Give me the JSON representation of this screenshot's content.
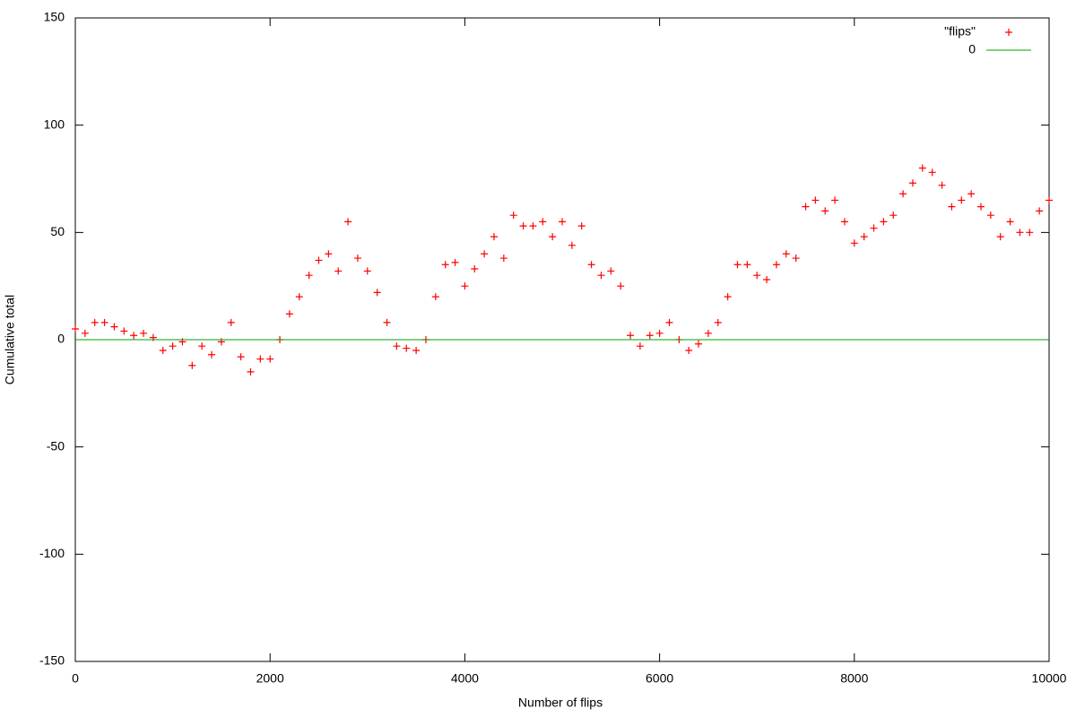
{
  "chart_data": {
    "type": "scatter",
    "xlabel": "Number of flips",
    "ylabel": "Cumulative total",
    "xlim": [
      0,
      10000
    ],
    "ylim": [
      -150,
      150
    ],
    "xticks": [
      0,
      2000,
      4000,
      6000,
      8000,
      10000
    ],
    "yticks": [
      -150,
      -100,
      -50,
      0,
      50,
      100,
      150
    ],
    "legend": "upper right",
    "series": [
      {
        "name": "\"flips\"",
        "color": "#ff0000",
        "style": "points",
        "x": [
          0,
          100,
          200,
          300,
          400,
          500,
          600,
          700,
          800,
          900,
          1000,
          1100,
          1200,
          1300,
          1400,
          1500,
          1600,
          1700,
          1800,
          1900,
          2000,
          2100,
          2200,
          2300,
          2400,
          2500,
          2600,
          2700,
          2800,
          2900,
          3000,
          3100,
          3200,
          3300,
          3400,
          3500,
          3600,
          3700,
          3800,
          3900,
          4000,
          4100,
          4200,
          4300,
          4400,
          4500,
          4600,
          4700,
          4800,
          4900,
          5000,
          5100,
          5200,
          5300,
          5400,
          5500,
          5600,
          5700,
          5800,
          5900,
          6000,
          6100,
          6200,
          6300,
          6400,
          6500,
          6600,
          6700,
          6800,
          6900,
          7000,
          7100,
          7200,
          7300,
          7400,
          7500,
          7600,
          7700,
          7800,
          7900,
          8000,
          8100,
          8200,
          8300,
          8400,
          8500,
          8600,
          8700,
          8800,
          8900,
          9000,
          9100,
          9200,
          9300,
          9400,
          9500,
          9600,
          9700,
          9800,
          9900,
          10000
        ],
        "values": [
          5,
          3,
          8,
          8,
          6,
          4,
          2,
          3,
          1,
          -5,
          -3,
          -1,
          -12,
          -3,
          -7,
          -1,
          8,
          -8,
          -15,
          -9,
          -9,
          0,
          12,
          20,
          30,
          37,
          40,
          32,
          55,
          38,
          32,
          22,
          8,
          -3,
          -4,
          -5,
          0,
          20,
          35,
          36,
          25,
          33,
          40,
          48,
          38,
          58,
          53,
          53,
          55,
          48,
          55,
          44,
          53,
          35,
          30,
          32,
          25,
          2,
          -3,
          2,
          3,
          8,
          0,
          -5,
          -2,
          3,
          8,
          20,
          35,
          35,
          30,
          28,
          35,
          40,
          38,
          62,
          65,
          60,
          65,
          55,
          45,
          48,
          52,
          55,
          58,
          68,
          73,
          80,
          78,
          72,
          62,
          65,
          68,
          62,
          58,
          48,
          55,
          50,
          50,
          60,
          65
        ]
      },
      {
        "name": "0",
        "color": "#00a000",
        "style": "line",
        "x": [
          0,
          10000
        ],
        "values": [
          0,
          0
        ]
      }
    ]
  }
}
